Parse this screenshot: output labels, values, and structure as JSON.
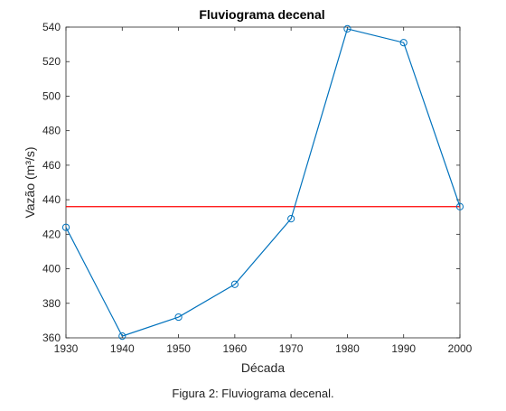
{
  "chart_data": {
    "type": "line",
    "title": "Fluviograma decenal",
    "xlabel": "Década",
    "ylabel": "Vazão (m³/s)",
    "x": [
      1930,
      1940,
      1950,
      1960,
      1970,
      1980,
      1990,
      2000
    ],
    "values": [
      424,
      361,
      372,
      391,
      429,
      539,
      531,
      436
    ],
    "reference_line": 436,
    "xlim": [
      1930,
      2000
    ],
    "ylim": [
      360,
      540
    ],
    "xticks": [
      1930,
      1940,
      1950,
      1960,
      1970,
      1980,
      1990,
      2000
    ],
    "yticks": [
      360,
      380,
      400,
      420,
      440,
      460,
      480,
      500,
      520,
      540
    ],
    "grid": false,
    "series_color": "#0072bd",
    "reference_color": "#ff0000"
  },
  "caption": "Figura 2: Fluviograma decenal."
}
